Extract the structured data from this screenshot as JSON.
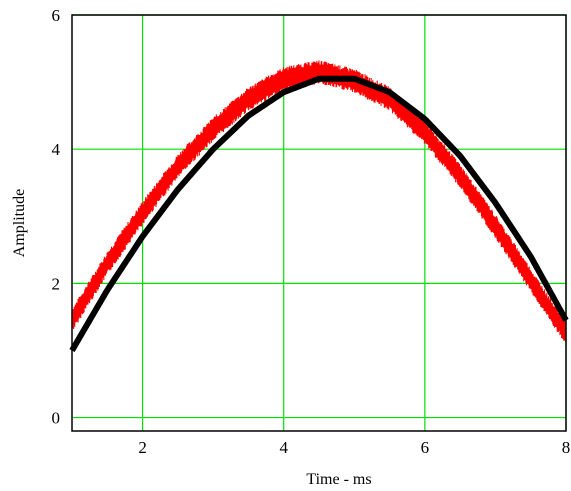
{
  "chart_data": {
    "type": "line",
    "title": "",
    "xlabel": "Time - ms",
    "ylabel": "Amplitude",
    "xlim": [
      1,
      8
    ],
    "ylim": [
      -0.2,
      6
    ],
    "xticks": [
      2,
      4,
      6,
      8
    ],
    "yticks": [
      0,
      2,
      4,
      6
    ],
    "x_tick_labels": [
      "2",
      "4",
      "6",
      "8"
    ],
    "y_tick_labels": [
      "0",
      "2",
      "4",
      "6"
    ],
    "grid": true,
    "legend": "none",
    "colors": {
      "grid": "#00e000",
      "frame": "#000000"
    },
    "series": [
      {
        "color": "#ff0000",
        "noisy": true,
        "x": [
          1,
          1.5,
          2,
          2.5,
          3,
          3.5,
          4,
          4.5,
          5,
          5.5,
          6,
          6.5,
          7,
          7.5,
          8
        ],
        "y": [
          1.45,
          2.3,
          3.05,
          3.75,
          4.3,
          4.75,
          5.05,
          5.15,
          5.02,
          4.75,
          4.25,
          3.6,
          2.85,
          2.05,
          1.25
        ]
      },
      {
        "color": "#000000",
        "noisy": false,
        "x": [
          1,
          1.5,
          2,
          2.5,
          3,
          3.5,
          4,
          4.5,
          5,
          5.5,
          6,
          6.5,
          7,
          7.5,
          8
        ],
        "y": [
          1.0,
          1.9,
          2.7,
          3.4,
          4.0,
          4.5,
          4.85,
          5.05,
          5.05,
          4.85,
          4.45,
          3.9,
          3.2,
          2.4,
          1.45
        ]
      }
    ]
  }
}
